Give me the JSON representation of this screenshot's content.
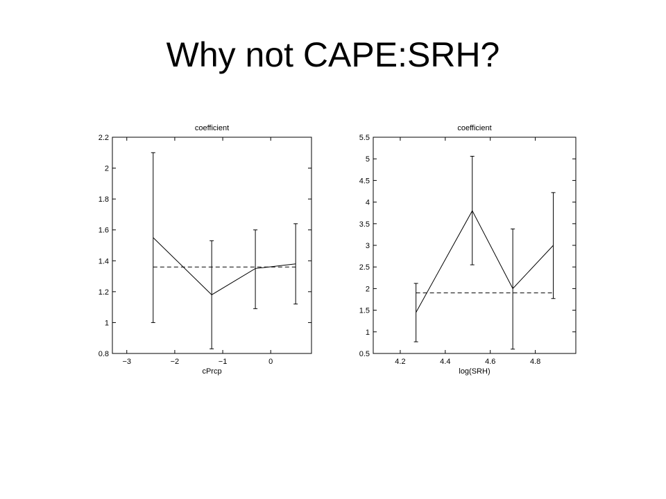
{
  "slide": {
    "title": "Why not CAPE:SRH?"
  },
  "chart_data": [
    {
      "type": "line",
      "title": "coefficient",
      "xlabel": "cPrcp",
      "ylabel": "",
      "xlim": [
        -3.3,
        0.85
      ],
      "ylim": [
        0.8,
        2.2
      ],
      "xticks": [
        -3,
        -2,
        -1,
        0
      ],
      "xtick_labels": [
        "−3",
        "−2",
        "−1",
        "0"
      ],
      "yticks": [
        0.8,
        1,
        1.2,
        1.4,
        1.6,
        1.8,
        2,
        2.2
      ],
      "ytick_labels": [
        "0.8",
        "1",
        "1.2",
        "1.4",
        "1.6",
        "1.8",
        "2",
        "2.2"
      ],
      "grid": false,
      "series": [
        {
          "style": "solid",
          "x": [
            -2.45,
            -1.23,
            -0.32,
            0.52
          ],
          "y": [
            1.55,
            1.18,
            1.35,
            1.38
          ],
          "err_low": [
            1.0,
            0.83,
            1.09,
            1.12
          ],
          "err_high": [
            2.1,
            1.53,
            1.6,
            1.64
          ]
        },
        {
          "style": "dashed",
          "x": [
            -2.45,
            0.52
          ],
          "y": [
            1.36,
            1.36
          ]
        }
      ]
    },
    {
      "type": "line",
      "title": "coefficient",
      "xlabel": "log(SRH)",
      "ylabel": "",
      "xlim": [
        4.08,
        4.98
      ],
      "ylim": [
        0.5,
        5.5
      ],
      "xticks": [
        4.2,
        4.4,
        4.6,
        4.8
      ],
      "xtick_labels": [
        "4.2",
        "4.4",
        "4.6",
        "4.8"
      ],
      "yticks": [
        0.5,
        1,
        1.5,
        2,
        2.5,
        3,
        3.5,
        4,
        4.5,
        5,
        5.5
      ],
      "ytick_labels": [
        "0.5",
        "1",
        "1.5",
        "2",
        "2.5",
        "3",
        "3.5",
        "4",
        "4.5",
        "5",
        "5.5"
      ],
      "grid": false,
      "series": [
        {
          "style": "solid",
          "x": [
            4.27,
            4.52,
            4.7,
            4.88
          ],
          "y": [
            1.45,
            3.8,
            2.0,
            3.0
          ],
          "err_low": [
            0.77,
            2.55,
            0.6,
            1.77
          ],
          "err_high": [
            2.12,
            5.06,
            3.38,
            4.22
          ]
        },
        {
          "style": "dashed",
          "x": [
            4.27,
            4.88
          ],
          "y": [
            1.9,
            1.9
          ]
        }
      ]
    }
  ]
}
